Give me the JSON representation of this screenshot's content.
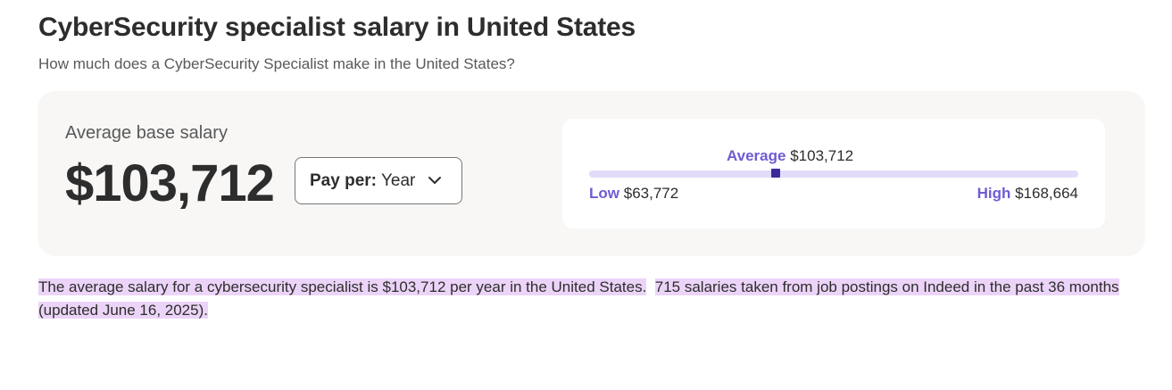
{
  "header": {
    "title": "CyberSecurity specialist salary in United States",
    "subtitle": "How much does a CyberSecurity Specialist make in the United States?"
  },
  "salary_card": {
    "average_label": "Average base salary",
    "average_value": "$103,712",
    "pay_per": {
      "label": "Pay per:",
      "selected": "Year"
    },
    "range": {
      "average_label": "Average",
      "average_value": "$103,712",
      "low_label": "Low",
      "low_value": "$63,772",
      "high_label": "High",
      "high_value": "$168,664",
      "low_number": 63772,
      "high_number": 168664,
      "average_number": 103712
    }
  },
  "description": {
    "sentence1": "The average salary for a cybersecurity specialist is $103,712 per year in the United States.",
    "sentence2": "715 salaries taken from job postings on Indeed in the past 36 months (updated June 16, 2025)."
  },
  "colors": {
    "accent": "#6f5bd3",
    "marker": "#3a2a9b",
    "bar": "#e3dcf8",
    "highlight": "#ecd4f8"
  }
}
